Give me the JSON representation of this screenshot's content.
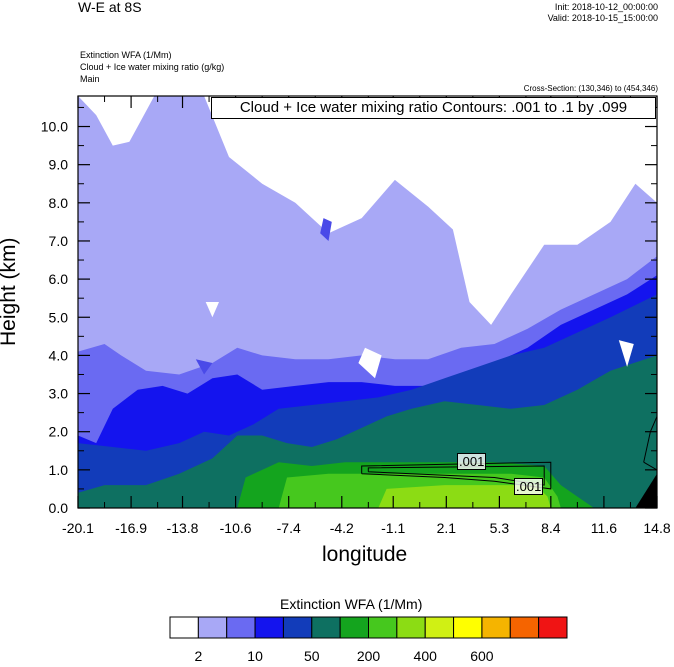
{
  "header": {
    "title": "W-E at 8S",
    "init": "Init: 2018-10-12_00:00:00",
    "valid": "Valid: 2018-10-15_15:00:00",
    "field_lines": [
      "Extinction WFA   (1/Mm)",
      "Cloud + Ice water mixing ratio   (g/kg)",
      "Main"
    ],
    "cross_section": "Cross-Section: (130,346) to (454,346)"
  },
  "chart_data": {
    "type": "heatmap",
    "title": "",
    "contour_label": "Cloud + Ice water mixing ratio Contours: .001 to .1 by .099",
    "contour_value_labels": [
      ".001",
      ".001"
    ],
    "xlabel": "longitude",
    "ylabel": "Height (km)",
    "x_ticks": [
      "-20.1",
      "-16.9",
      "-13.8",
      "-10.6",
      "-7.4",
      "-4.2",
      "-1.1",
      "2.1",
      "5.3",
      "8.4",
      "11.6",
      "14.8"
    ],
    "y_ticks": [
      "0.0",
      "1.0",
      "2.0",
      "3.0",
      "4.0",
      "5.0",
      "6.0",
      "7.0",
      "8.0",
      "9.0",
      "10.0"
    ],
    "xlim": [
      -20.1,
      14.8
    ],
    "ylim": [
      0,
      10.8
    ],
    "layers": [
      {
        "level": 0,
        "color": "#a8a8f6",
        "top": [
          [
            -20.1,
            10.8
          ],
          [
            -19.0,
            10.3
          ],
          [
            -18.0,
            9.5
          ],
          [
            -17.0,
            9.6
          ],
          [
            -15.5,
            10.8
          ],
          [
            -12.5,
            10.8
          ],
          [
            -11.0,
            9.2
          ],
          [
            -9.0,
            8.5
          ],
          [
            -7.0,
            8.0
          ],
          [
            -5.0,
            7.2
          ],
          [
            -3.0,
            7.6
          ],
          [
            -1.0,
            8.6
          ],
          [
            1.0,
            7.9
          ],
          [
            2.5,
            7.3
          ],
          [
            3.5,
            5.4
          ],
          [
            4.8,
            4.8
          ],
          [
            6.0,
            5.6
          ],
          [
            8.0,
            6.9
          ],
          [
            10.0,
            6.9
          ],
          [
            12.0,
            7.5
          ],
          [
            13.5,
            8.5
          ],
          [
            14.8,
            8.0
          ]
        ]
      },
      {
        "level": 1,
        "color": "#6a6af2",
        "top": [
          [
            -20.1,
            4.1
          ],
          [
            -18.5,
            4.3
          ],
          [
            -17.5,
            4.0
          ],
          [
            -16.0,
            3.6
          ],
          [
            -14.0,
            3.5
          ],
          [
            -12.0,
            3.8
          ],
          [
            -10.5,
            4.2
          ],
          [
            -9.0,
            4.0
          ],
          [
            -7.0,
            3.9
          ],
          [
            -5.0,
            3.9
          ],
          [
            -3.0,
            4.0
          ],
          [
            -1.0,
            3.9
          ],
          [
            1.0,
            3.9
          ],
          [
            3.0,
            4.2
          ],
          [
            5.0,
            4.3
          ],
          [
            7.0,
            4.7
          ],
          [
            9.0,
            5.2
          ],
          [
            11.0,
            5.6
          ],
          [
            13.0,
            6.0
          ],
          [
            14.8,
            6.6
          ]
        ]
      },
      {
        "level": 2,
        "color": "#1414ee",
        "top": [
          [
            -20.1,
            1.9
          ],
          [
            -19.0,
            1.7
          ],
          [
            -18.0,
            2.6
          ],
          [
            -16.5,
            3.1
          ],
          [
            -15.0,
            3.2
          ],
          [
            -13.5,
            3.0
          ],
          [
            -12.0,
            3.4
          ],
          [
            -10.5,
            3.5
          ],
          [
            -9.0,
            3.1
          ],
          [
            -7.0,
            3.2
          ],
          [
            -5.0,
            3.3
          ],
          [
            -3.0,
            3.3
          ],
          [
            -1.0,
            3.2
          ],
          [
            1.0,
            3.2
          ],
          [
            3.0,
            3.4
          ],
          [
            5.0,
            3.8
          ],
          [
            7.0,
            4.2
          ],
          [
            9.0,
            4.8
          ],
          [
            11.0,
            5.2
          ],
          [
            13.0,
            5.6
          ],
          [
            14.8,
            6.1
          ]
        ]
      },
      {
        "level": 3,
        "color": "#123cba",
        "top": [
          [
            -20.1,
            1.7
          ],
          [
            -18.0,
            1.6
          ],
          [
            -16.0,
            1.5
          ],
          [
            -14.0,
            1.7
          ],
          [
            -12.5,
            2.0
          ],
          [
            -11.0,
            1.9
          ],
          [
            -9.5,
            2.2
          ],
          [
            -8.0,
            2.6
          ],
          [
            -6.0,
            2.7
          ],
          [
            -4.0,
            2.8
          ],
          [
            -2.0,
            2.9
          ],
          [
            0.0,
            3.1
          ],
          [
            2.0,
            3.4
          ],
          [
            4.0,
            3.7
          ],
          [
            6.0,
            4.0
          ],
          [
            8.0,
            4.2
          ],
          [
            10.0,
            4.6
          ],
          [
            12.0,
            5.0
          ],
          [
            14.8,
            5.6
          ]
        ]
      },
      {
        "level": 4,
        "color": "#0e7061",
        "top": [
          [
            -20.1,
            0.4
          ],
          [
            -18.5,
            0.6
          ],
          [
            -16.0,
            0.6
          ],
          [
            -14.0,
            0.9
          ],
          [
            -12.0,
            1.3
          ],
          [
            -10.5,
            1.9
          ],
          [
            -9.0,
            1.9
          ],
          [
            -7.5,
            1.7
          ],
          [
            -6.0,
            1.6
          ],
          [
            -4.5,
            1.8
          ],
          [
            -3.0,
            2.1
          ],
          [
            -1.5,
            2.4
          ],
          [
            0.0,
            2.6
          ],
          [
            2.0,
            2.8
          ],
          [
            4.0,
            2.7
          ],
          [
            6.0,
            2.6
          ],
          [
            8.0,
            2.7
          ],
          [
            10.0,
            3.1
          ],
          [
            12.0,
            3.6
          ],
          [
            14.8,
            4.0
          ]
        ]
      },
      {
        "level": 5,
        "color": "#14a41e",
        "top": [
          [
            -20.1,
            0.0
          ],
          [
            -10.5,
            0.0
          ],
          [
            -10.0,
            0.8
          ],
          [
            -8.0,
            1.2
          ],
          [
            -6.0,
            1.1
          ],
          [
            -4.0,
            1.2
          ],
          [
            -1.0,
            1.2
          ],
          [
            2.0,
            1.2
          ],
          [
            5.0,
            1.2
          ],
          [
            8.0,
            1.1
          ],
          [
            9.0,
            0.6
          ],
          [
            10.0,
            0.3
          ],
          [
            11.0,
            0.0
          ],
          [
            14.8,
            0.0
          ]
        ]
      },
      {
        "level": 6,
        "color": "#46c81e",
        "top": [
          [
            -20.1,
            0.0
          ],
          [
            -8.0,
            0.0
          ],
          [
            -7.5,
            0.8
          ],
          [
            -5.0,
            0.9
          ],
          [
            -2.0,
            0.9
          ],
          [
            2.0,
            0.9
          ],
          [
            6.0,
            0.9
          ],
          [
            8.0,
            0.8
          ],
          [
            8.8,
            0.3
          ],
          [
            9.0,
            0.0
          ],
          [
            14.8,
            0.0
          ]
        ]
      },
      {
        "level": 7,
        "color": "#8cdc14",
        "top": [
          [
            -20.1,
            0.0
          ],
          [
            -2.0,
            0.0
          ],
          [
            -1.5,
            0.5
          ],
          [
            2.0,
            0.6
          ],
          [
            6.0,
            0.6
          ],
          [
            7.5,
            0.6
          ],
          [
            8.2,
            0.3
          ],
          [
            8.4,
            0.0
          ],
          [
            14.8,
            0.0
          ]
        ]
      }
    ],
    "white_patches": [
      [
        [
          -12.4,
          5.4
        ],
        [
          -12.0,
          5.0
        ],
        [
          -11.6,
          5.4
        ]
      ],
      [
        [
          -3.2,
          3.8
        ],
        [
          -2.2,
          3.4
        ],
        [
          -1.8,
          4.0
        ],
        [
          -2.8,
          4.2
        ]
      ],
      [
        [
          12.5,
          4.4
        ],
        [
          13.0,
          3.7
        ],
        [
          13.4,
          4.3
        ]
      ]
    ],
    "blue_patches": [
      [
        [
          -5.5,
          7.2
        ],
        [
          -5.0,
          7.0
        ],
        [
          -4.8,
          7.5
        ],
        [
          -5.3,
          7.6
        ]
      ],
      [
        [
          -13.0,
          3.9
        ],
        [
          -12.5,
          3.5
        ],
        [
          -12.0,
          3.8
        ]
      ]
    ],
    "terrain": [
      [
        13.5,
        0.0
      ],
      [
        14.8,
        0.0
      ],
      [
        14.8,
        0.9
      ]
    ],
    "contours": [
      [
        [
          -3.0,
          0.9
        ],
        [
          -3.0,
          1.1
        ],
        [
          8.4,
          1.2
        ],
        [
          8.4,
          0.5
        ],
        [
          5.0,
          0.7
        ],
        [
          2.0,
          0.8
        ],
        [
          -3.0,
          0.9
        ]
      ],
      [
        [
          -2.6,
          0.95
        ],
        [
          -2.6,
          1.05
        ],
        [
          8.0,
          1.1
        ],
        [
          8.0,
          0.6
        ],
        [
          5.0,
          0.8
        ],
        [
          -2.6,
          0.95
        ]
      ],
      [
        [
          14.0,
          1.2
        ],
        [
          14.4,
          2.0
        ],
        [
          14.8,
          2.4
        ],
        [
          14.8,
          1.0
        ],
        [
          14.0,
          1.2
        ]
      ]
    ],
    "colorbar": {
      "title": "Extinction WFA   (1/Mm)",
      "colors": [
        "#ffffff",
        "#a8a8f6",
        "#6a6af2",
        "#1414ee",
        "#123cba",
        "#0e7061",
        "#14a41e",
        "#46c81e",
        "#8cdc14",
        "#d0f014",
        "#ffff00",
        "#f5b400",
        "#f56400",
        "#f01414"
      ],
      "labels": [
        "2",
        "10",
        "50",
        "200",
        "400",
        "600"
      ]
    }
  }
}
